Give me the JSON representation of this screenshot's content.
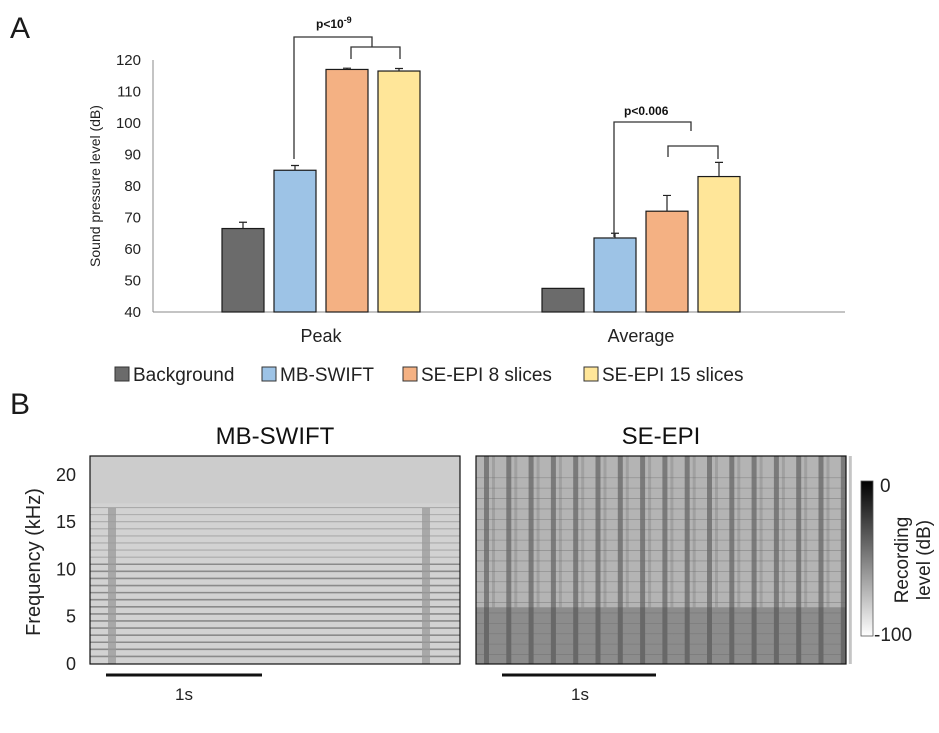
{
  "panel_a_label": "A",
  "panel_b_label": "B",
  "chart_data": [
    {
      "type": "bar",
      "categories": [
        "Peak",
        "Average"
      ],
      "ylabel": "Sound pressure level (dB)",
      "ylim": [
        40,
        120
      ],
      "yticks": [
        40,
        50,
        60,
        70,
        80,
        90,
        100,
        110,
        120
      ],
      "grid": false,
      "legend_position": "bottom",
      "series": [
        {
          "name": "Background",
          "color": "#6b6b6b",
          "values": [
            66.5,
            47.5
          ],
          "errors": [
            2.0,
            0
          ]
        },
        {
          "name": "MB-SWIFT",
          "color": "#9dc3e6",
          "values": [
            85,
            63.5
          ],
          "errors": [
            1.5,
            1.5
          ]
        },
        {
          "name": "SE-EPI 8 slices",
          "color": "#f4b183",
          "values": [
            117,
            72
          ],
          "errors": [
            0.4,
            5.0
          ]
        },
        {
          "name": "SE-EPI 15 slices",
          "color": "#ffe699",
          "values": [
            116.5,
            83
          ],
          "errors": [
            0.8,
            4.5
          ]
        }
      ],
      "annotations": [
        "p<10-9",
        "p<0.006"
      ],
      "annotation_peak": {
        "base": "p<10",
        "sup": "-9"
      },
      "annotation_average": "p<0.006"
    },
    {
      "type": "heatmap",
      "panels": [
        {
          "title": "MB-SWIFT",
          "scale_bar": "1s",
          "pattern": "continuous"
        },
        {
          "title": "SE-EPI",
          "scale_bar": "1s",
          "pattern": "pulsed"
        }
      ],
      "ylabel": "Frequency (kHz)",
      "yticks": [
        0,
        5,
        10,
        15,
        20
      ],
      "ylim": [
        0,
        22
      ],
      "colorbar": {
        "label": "Recording level (dB)",
        "label_line1": "Recording",
        "label_line2": "level (dB)",
        "max": "0",
        "min": "-100",
        "colormap": "gray-reversed"
      }
    }
  ]
}
